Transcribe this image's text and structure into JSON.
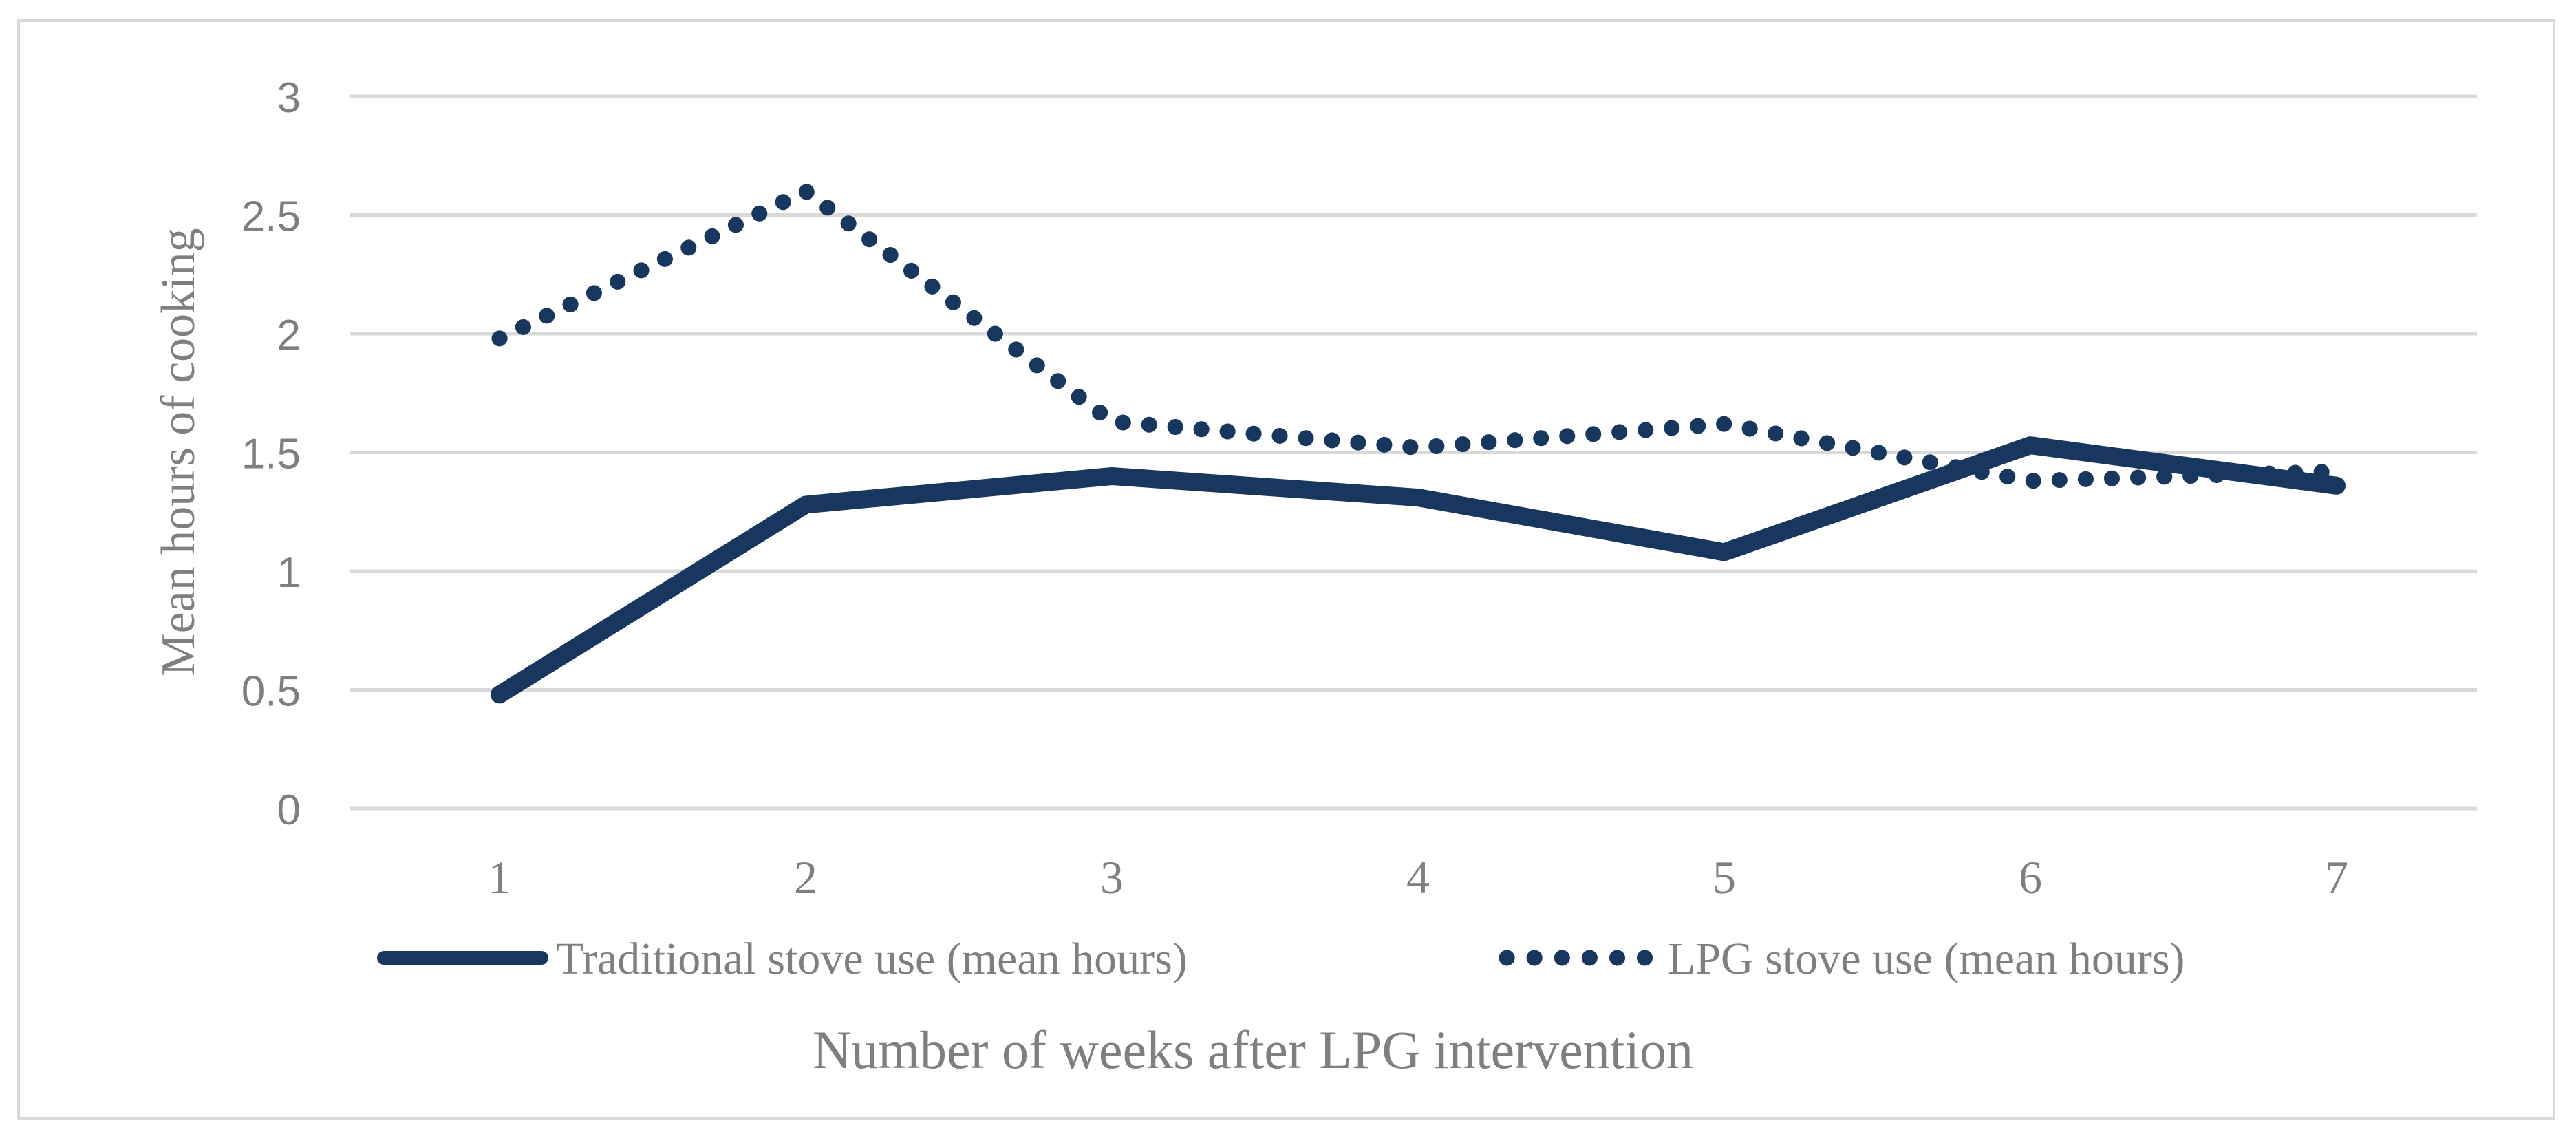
{
  "chart_data": {
    "type": "line",
    "title": "",
    "xlabel": "Number of weeks after LPG intervention",
    "ylabel": "Mean hours of cooking",
    "x": [
      1,
      2,
      3,
      4,
      5,
      6,
      7
    ],
    "x_tick_labels": [
      "1",
      "2",
      "3",
      "4",
      "5",
      "6",
      "7"
    ],
    "y_tick_labels": [
      "0",
      "0.5",
      "1",
      "1.5",
      "2",
      "2.5",
      "3"
    ],
    "y_tick_values": [
      0,
      0.5,
      1,
      1.5,
      2,
      2.5,
      3
    ],
    "ylim": [
      0,
      3
    ],
    "grid": "horizontal",
    "legend_position": "bottom",
    "series": [
      {
        "name": "Traditional stove use (mean hours)",
        "style": "solid",
        "color": "#17375E",
        "values": [
          0.48,
          1.28,
          1.4,
          1.31,
          1.08,
          1.53,
          1.36
        ]
      },
      {
        "name": "LPG stove use (mean hours)",
        "style": "dotted",
        "color": "#17375E",
        "values": [
          1.98,
          2.6,
          1.63,
          1.52,
          1.62,
          1.38,
          1.42
        ]
      }
    ]
  },
  "colors": {
    "navy": "#17375E",
    "gridline": "#D9D9D9",
    "frame_border": "#D9D9D9",
    "text_gray": "#7F7F7F",
    "background": "#FFFFFF"
  }
}
